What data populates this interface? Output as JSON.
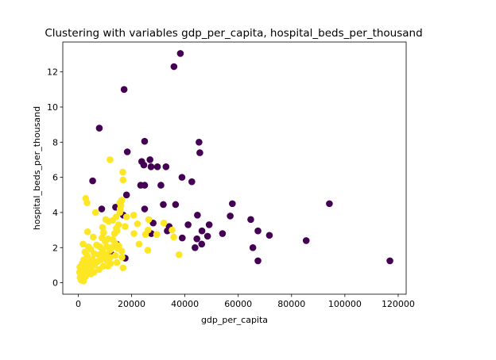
{
  "chart_data": {
    "type": "scatter",
    "title": "Clustering with variables gdp_per_capita, hospital_beds_per_thousand",
    "xlabel": "gdp_per_capita",
    "ylabel": "hospital_beds_per_thousand",
    "xlim": [
      -5800,
      123000
    ],
    "ylim": [
      -0.65,
      13.7
    ],
    "xticks": [
      0,
      20000,
      40000,
      60000,
      80000,
      100000,
      120000
    ],
    "yticks": [
      0,
      2,
      4,
      6,
      8,
      10,
      12
    ],
    "grid": false,
    "colors": {
      "cluster_0": "#440154",
      "cluster_1": "#fde725"
    },
    "series": [
      {
        "color": "#440154",
        "points": [
          [
            38300,
            13.05
          ],
          [
            35900,
            12.3
          ],
          [
            17200,
            11.0
          ],
          [
            7900,
            8.8
          ],
          [
            24900,
            8.05
          ],
          [
            45300,
            8.0
          ],
          [
            45600,
            7.4
          ],
          [
            18400,
            7.45
          ],
          [
            26900,
            7.0
          ],
          [
            23800,
            6.9
          ],
          [
            24600,
            6.7
          ],
          [
            27300,
            6.6
          ],
          [
            29700,
            6.6
          ],
          [
            32900,
            6.6
          ],
          [
            38900,
            6.0
          ],
          [
            42600,
            5.75
          ],
          [
            5400,
            5.8
          ],
          [
            23400,
            5.55
          ],
          [
            24900,
            5.55
          ],
          [
            31000,
            5.55
          ],
          [
            18100,
            5.0
          ],
          [
            57800,
            4.5
          ],
          [
            94200,
            4.5
          ],
          [
            36500,
            4.45
          ],
          [
            31900,
            4.45
          ],
          [
            14000,
            4.3
          ],
          [
            8800,
            4.2
          ],
          [
            24900,
            4.2
          ],
          [
            16900,
            3.85
          ],
          [
            44700,
            3.85
          ],
          [
            57000,
            3.8
          ],
          [
            64700,
            3.6
          ],
          [
            28100,
            3.4
          ],
          [
            41200,
            3.3
          ],
          [
            49100,
            3.3
          ],
          [
            34100,
            3.2
          ],
          [
            46400,
            2.95
          ],
          [
            33400,
            2.95
          ],
          [
            67400,
            2.95
          ],
          [
            27400,
            2.8
          ],
          [
            54100,
            2.8
          ],
          [
            71700,
            2.7
          ],
          [
            39000,
            2.55
          ],
          [
            48500,
            2.65
          ],
          [
            44500,
            2.5
          ],
          [
            85500,
            2.4
          ],
          [
            46300,
            2.2
          ],
          [
            65500,
            2.0
          ],
          [
            43800,
            2.0
          ],
          [
            12600,
            1.6
          ],
          [
            17600,
            1.4
          ],
          [
            67400,
            1.25
          ],
          [
            116900,
            1.25
          ],
          [
            14400,
            2.2
          ]
        ]
      },
      {
        "color": "#fde725",
        "points": [
          [
            11900,
            7.0
          ],
          [
            16700,
            6.3
          ],
          [
            16800,
            5.85
          ],
          [
            2800,
            4.8
          ],
          [
            3300,
            4.55
          ],
          [
            16300,
            4.7
          ],
          [
            15600,
            4.55
          ],
          [
            16000,
            4.4
          ],
          [
            15700,
            4.2
          ],
          [
            15600,
            4.0
          ],
          [
            6500,
            4.0
          ],
          [
            20800,
            3.85
          ],
          [
            18100,
            3.75
          ],
          [
            14200,
            3.75
          ],
          [
            26400,
            3.6
          ],
          [
            10300,
            3.6
          ],
          [
            12900,
            3.55
          ],
          [
            11400,
            3.5
          ],
          [
            32100,
            3.4
          ],
          [
            22200,
            3.35
          ],
          [
            15100,
            3.3
          ],
          [
            17600,
            3.2
          ],
          [
            9100,
            3.15
          ],
          [
            14300,
            3.1
          ],
          [
            26200,
            3.0
          ],
          [
            35200,
            3.0
          ],
          [
            14500,
            2.95
          ],
          [
            3500,
            2.9
          ],
          [
            9500,
            2.85
          ],
          [
            13600,
            2.8
          ],
          [
            20900,
            2.8
          ],
          [
            25200,
            2.75
          ],
          [
            29400,
            2.75
          ],
          [
            35800,
            2.6
          ],
          [
            5600,
            2.6
          ],
          [
            8900,
            2.55
          ],
          [
            11200,
            2.5
          ],
          [
            13000,
            2.45
          ],
          [
            10100,
            2.35
          ],
          [
            13800,
            2.25
          ],
          [
            22800,
            2.2
          ],
          [
            6900,
            2.15
          ],
          [
            15200,
            2.1
          ],
          [
            1800,
            2.2
          ],
          [
            3800,
            2.05
          ],
          [
            8100,
            2.05
          ],
          [
            10700,
            2.05
          ],
          [
            12400,
            2.0
          ],
          [
            14800,
            1.95
          ],
          [
            4700,
            1.9
          ],
          [
            9100,
            1.85
          ],
          [
            11900,
            1.85
          ],
          [
            26100,
            1.85
          ],
          [
            16300,
            1.8
          ],
          [
            2500,
            1.75
          ],
          [
            6000,
            1.65
          ],
          [
            7700,
            1.6
          ],
          [
            10400,
            1.6
          ],
          [
            13900,
            1.55
          ],
          [
            37800,
            1.6
          ],
          [
            3300,
            1.55
          ],
          [
            9200,
            1.5
          ],
          [
            12000,
            1.45
          ],
          [
            16400,
            1.45
          ],
          [
            5300,
            1.35
          ],
          [
            8300,
            1.3
          ],
          [
            10600,
            1.3
          ],
          [
            2000,
            1.3
          ],
          [
            4100,
            1.2
          ],
          [
            7200,
            1.2
          ],
          [
            12100,
            1.1
          ],
          [
            14500,
            1.15
          ],
          [
            1500,
            1.1
          ],
          [
            3500,
            1.0
          ],
          [
            6000,
            1.0
          ],
          [
            9400,
            0.95
          ],
          [
            11200,
            0.95
          ],
          [
            16800,
            0.85
          ],
          [
            600,
            0.9
          ],
          [
            2300,
            0.85
          ],
          [
            4500,
            0.8
          ],
          [
            7800,
            0.75
          ],
          [
            1200,
            0.7
          ],
          [
            3400,
            0.65
          ],
          [
            5900,
            0.6
          ],
          [
            800,
            0.55
          ],
          [
            2200,
            0.5
          ],
          [
            4700,
            0.5
          ],
          [
            1300,
            0.4
          ],
          [
            2700,
            0.35
          ],
          [
            700,
            0.3
          ],
          [
            1800,
            0.25
          ],
          [
            1100,
            0.15
          ],
          [
            2000,
            0.1
          ],
          [
            500,
            0.6
          ]
        ]
      }
    ]
  }
}
